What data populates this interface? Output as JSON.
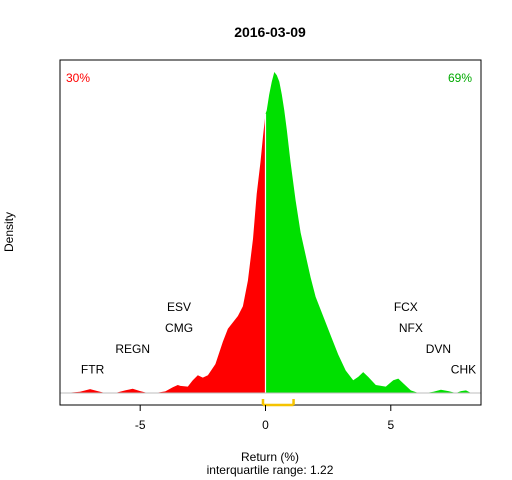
{
  "chart_data": {
    "type": "area",
    "title": "2016-03-09",
    "xlabel": "Return (%)",
    "subtitle": "interquartile range: 1.22",
    "ylabel": "Density",
    "xlim": [
      -8.2,
      8.6
    ],
    "x_ticks": [
      "-5",
      "0",
      "5"
    ],
    "x_tick_values": [
      -5,
      0,
      5
    ],
    "percent_negative": "30%",
    "percent_positive": "69%",
    "negative_color": "#ff0000",
    "positive_color": "#00e000",
    "iqr": {
      "q1": -0.1,
      "q3": 1.12,
      "color": "#f5c300"
    },
    "density_scale_max": 1.0,
    "density": {
      "x": [
        -8.0,
        -7.4,
        -7.0,
        -6.7,
        -6.4,
        -6.0,
        -5.6,
        -5.3,
        -5.0,
        -4.7,
        -4.4,
        -4.0,
        -3.7,
        -3.5,
        -3.4,
        -3.1,
        -2.9,
        -2.7,
        -2.5,
        -2.3,
        -2.0,
        -1.7,
        -1.5,
        -1.3,
        -1.1,
        -0.9,
        -0.7,
        -0.5,
        -0.35,
        -0.2,
        -0.1,
        0.0,
        0.05,
        0.15,
        0.25,
        0.35,
        0.45,
        0.55,
        0.65,
        0.75,
        0.85,
        1.0,
        1.2,
        1.4,
        1.6,
        1.8,
        2.0,
        2.3,
        2.6,
        2.9,
        3.2,
        3.5,
        3.7,
        3.9,
        4.1,
        4.4,
        4.8,
        5.1,
        5.3,
        5.5,
        5.8,
        6.1,
        6.4,
        6.7,
        7.0,
        7.3,
        7.6,
        7.8,
        8.0,
        8.2
      ],
      "y": [
        0.0,
        0.004,
        0.012,
        0.006,
        0.0,
        0.0,
        0.008,
        0.013,
        0.006,
        0.0,
        0.0,
        0.005,
        0.018,
        0.025,
        0.022,
        0.02,
        0.04,
        0.055,
        0.048,
        0.055,
        0.09,
        0.16,
        0.2,
        0.22,
        0.24,
        0.27,
        0.35,
        0.48,
        0.62,
        0.72,
        0.8,
        0.87,
        0.88,
        0.93,
        0.97,
        1.0,
        0.99,
        0.97,
        0.93,
        0.88,
        0.82,
        0.72,
        0.6,
        0.5,
        0.43,
        0.36,
        0.3,
        0.24,
        0.18,
        0.12,
        0.07,
        0.04,
        0.05,
        0.065,
        0.05,
        0.025,
        0.02,
        0.04,
        0.045,
        0.03,
        0.008,
        0.0,
        0.0,
        0.004,
        0.01,
        0.006,
        0.0,
        0.006,
        0.008,
        0.0
      ]
    },
    "annotations": [
      {
        "label": "FTR",
        "x": -6.9,
        "y": 0.06
      },
      {
        "label": "REGN",
        "x": -5.3,
        "y": 0.125
      },
      {
        "label": "CMG",
        "x": -3.45,
        "y": 0.19
      },
      {
        "label": "ESV",
        "x": -3.45,
        "y": 0.255
      },
      {
        "label": "FCX",
        "x": 5.6,
        "y": 0.255
      },
      {
        "label": "NFX",
        "x": 5.8,
        "y": 0.19
      },
      {
        "label": "DVN",
        "x": 6.9,
        "y": 0.125
      },
      {
        "label": "CHK",
        "x": 7.9,
        "y": 0.06
      }
    ]
  }
}
